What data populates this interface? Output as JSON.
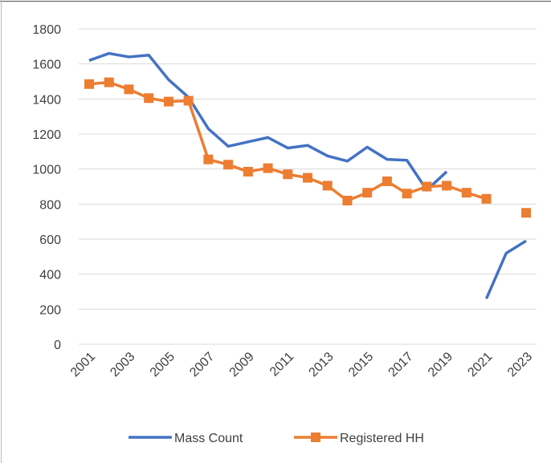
{
  "chart_data": {
    "type": "line",
    "categories": [
      "2001",
      null,
      "2003",
      null,
      "2005",
      null,
      "2007",
      null,
      "2009",
      null,
      "2011",
      null,
      "2013",
      null,
      "2015",
      null,
      "2017",
      null,
      "2019",
      null,
      "2021",
      null,
      "2023"
    ],
    "series": [
      {
        "name": "Mass Count",
        "color": "#4472c4",
        "marker": false,
        "values": [
          1620,
          1660,
          1640,
          1650,
          1510,
          1410,
          1230,
          1130,
          1155,
          1180,
          1120,
          1135,
          1075,
          1045,
          1125,
          1055,
          1050,
          880,
          985,
          null,
          260,
          520,
          590
        ]
      },
      {
        "name": "Registered HH",
        "color": "#ed7d31",
        "marker": true,
        "values": [
          1485,
          1495,
          1455,
          1405,
          1385,
          1390,
          1055,
          1025,
          985,
          1005,
          970,
          950,
          905,
          820,
          865,
          930,
          860,
          900,
          905,
          865,
          830,
          null,
          750
        ]
      }
    ],
    "ylim": [
      0,
      1800
    ],
    "yticks": [
      0,
      200,
      400,
      600,
      800,
      1000,
      1200,
      1400,
      1600,
      1800
    ],
    "grid": true,
    "legend": "bottom"
  }
}
